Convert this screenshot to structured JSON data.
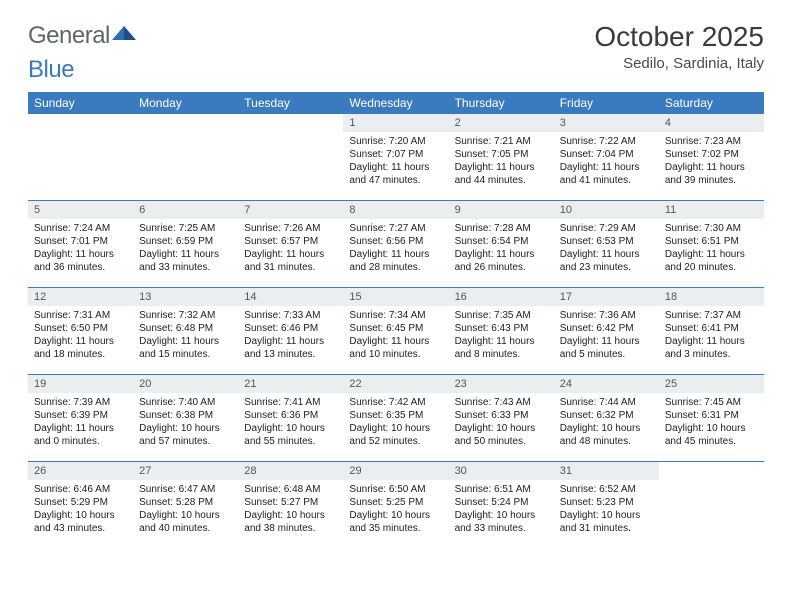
{
  "brand": {
    "part1": "General",
    "part2": "Blue"
  },
  "title": "October 2025",
  "location": "Sedilo, Sardinia, Italy",
  "colors": {
    "header_bg": "#3a7bbf",
    "header_text": "#ffffff",
    "daynum_bg": "#ebeef1",
    "daynum_text": "#555555",
    "body_text": "#222222",
    "rule": "#3a7bbf",
    "logo_gray": "#5b6670",
    "logo_blue": "#3a7bbf"
  },
  "weekdays": [
    "Sunday",
    "Monday",
    "Tuesday",
    "Wednesday",
    "Thursday",
    "Friday",
    "Saturday"
  ],
  "weeks": [
    [
      {
        "n": "",
        "sr": "",
        "ss": "",
        "dl": ""
      },
      {
        "n": "",
        "sr": "",
        "ss": "",
        "dl": ""
      },
      {
        "n": "",
        "sr": "",
        "ss": "",
        "dl": ""
      },
      {
        "n": "1",
        "sr": "7:20 AM",
        "ss": "7:07 PM",
        "dl": "11 hours and 47 minutes."
      },
      {
        "n": "2",
        "sr": "7:21 AM",
        "ss": "7:05 PM",
        "dl": "11 hours and 44 minutes."
      },
      {
        "n": "3",
        "sr": "7:22 AM",
        "ss": "7:04 PM",
        "dl": "11 hours and 41 minutes."
      },
      {
        "n": "4",
        "sr": "7:23 AM",
        "ss": "7:02 PM",
        "dl": "11 hours and 39 minutes."
      }
    ],
    [
      {
        "n": "5",
        "sr": "7:24 AM",
        "ss": "7:01 PM",
        "dl": "11 hours and 36 minutes."
      },
      {
        "n": "6",
        "sr": "7:25 AM",
        "ss": "6:59 PM",
        "dl": "11 hours and 33 minutes."
      },
      {
        "n": "7",
        "sr": "7:26 AM",
        "ss": "6:57 PM",
        "dl": "11 hours and 31 minutes."
      },
      {
        "n": "8",
        "sr": "7:27 AM",
        "ss": "6:56 PM",
        "dl": "11 hours and 28 minutes."
      },
      {
        "n": "9",
        "sr": "7:28 AM",
        "ss": "6:54 PM",
        "dl": "11 hours and 26 minutes."
      },
      {
        "n": "10",
        "sr": "7:29 AM",
        "ss": "6:53 PM",
        "dl": "11 hours and 23 minutes."
      },
      {
        "n": "11",
        "sr": "7:30 AM",
        "ss": "6:51 PM",
        "dl": "11 hours and 20 minutes."
      }
    ],
    [
      {
        "n": "12",
        "sr": "7:31 AM",
        "ss": "6:50 PM",
        "dl": "11 hours and 18 minutes."
      },
      {
        "n": "13",
        "sr": "7:32 AM",
        "ss": "6:48 PM",
        "dl": "11 hours and 15 minutes."
      },
      {
        "n": "14",
        "sr": "7:33 AM",
        "ss": "6:46 PM",
        "dl": "11 hours and 13 minutes."
      },
      {
        "n": "15",
        "sr": "7:34 AM",
        "ss": "6:45 PM",
        "dl": "11 hours and 10 minutes."
      },
      {
        "n": "16",
        "sr": "7:35 AM",
        "ss": "6:43 PM",
        "dl": "11 hours and 8 minutes."
      },
      {
        "n": "17",
        "sr": "7:36 AM",
        "ss": "6:42 PM",
        "dl": "11 hours and 5 minutes."
      },
      {
        "n": "18",
        "sr": "7:37 AM",
        "ss": "6:41 PM",
        "dl": "11 hours and 3 minutes."
      }
    ],
    [
      {
        "n": "19",
        "sr": "7:39 AM",
        "ss": "6:39 PM",
        "dl": "11 hours and 0 minutes."
      },
      {
        "n": "20",
        "sr": "7:40 AM",
        "ss": "6:38 PM",
        "dl": "10 hours and 57 minutes."
      },
      {
        "n": "21",
        "sr": "7:41 AM",
        "ss": "6:36 PM",
        "dl": "10 hours and 55 minutes."
      },
      {
        "n": "22",
        "sr": "7:42 AM",
        "ss": "6:35 PM",
        "dl": "10 hours and 52 minutes."
      },
      {
        "n": "23",
        "sr": "7:43 AM",
        "ss": "6:33 PM",
        "dl": "10 hours and 50 minutes."
      },
      {
        "n": "24",
        "sr": "7:44 AM",
        "ss": "6:32 PM",
        "dl": "10 hours and 48 minutes."
      },
      {
        "n": "25",
        "sr": "7:45 AM",
        "ss": "6:31 PM",
        "dl": "10 hours and 45 minutes."
      }
    ],
    [
      {
        "n": "26",
        "sr": "6:46 AM",
        "ss": "5:29 PM",
        "dl": "10 hours and 43 minutes."
      },
      {
        "n": "27",
        "sr": "6:47 AM",
        "ss": "5:28 PM",
        "dl": "10 hours and 40 minutes."
      },
      {
        "n": "28",
        "sr": "6:48 AM",
        "ss": "5:27 PM",
        "dl": "10 hours and 38 minutes."
      },
      {
        "n": "29",
        "sr": "6:50 AM",
        "ss": "5:25 PM",
        "dl": "10 hours and 35 minutes."
      },
      {
        "n": "30",
        "sr": "6:51 AM",
        "ss": "5:24 PM",
        "dl": "10 hours and 33 minutes."
      },
      {
        "n": "31",
        "sr": "6:52 AM",
        "ss": "5:23 PM",
        "dl": "10 hours and 31 minutes."
      },
      {
        "n": "",
        "sr": "",
        "ss": "",
        "dl": ""
      }
    ]
  ],
  "labels": {
    "sunrise": "Sunrise: ",
    "sunset": "Sunset: ",
    "daylight": "Daylight: "
  }
}
